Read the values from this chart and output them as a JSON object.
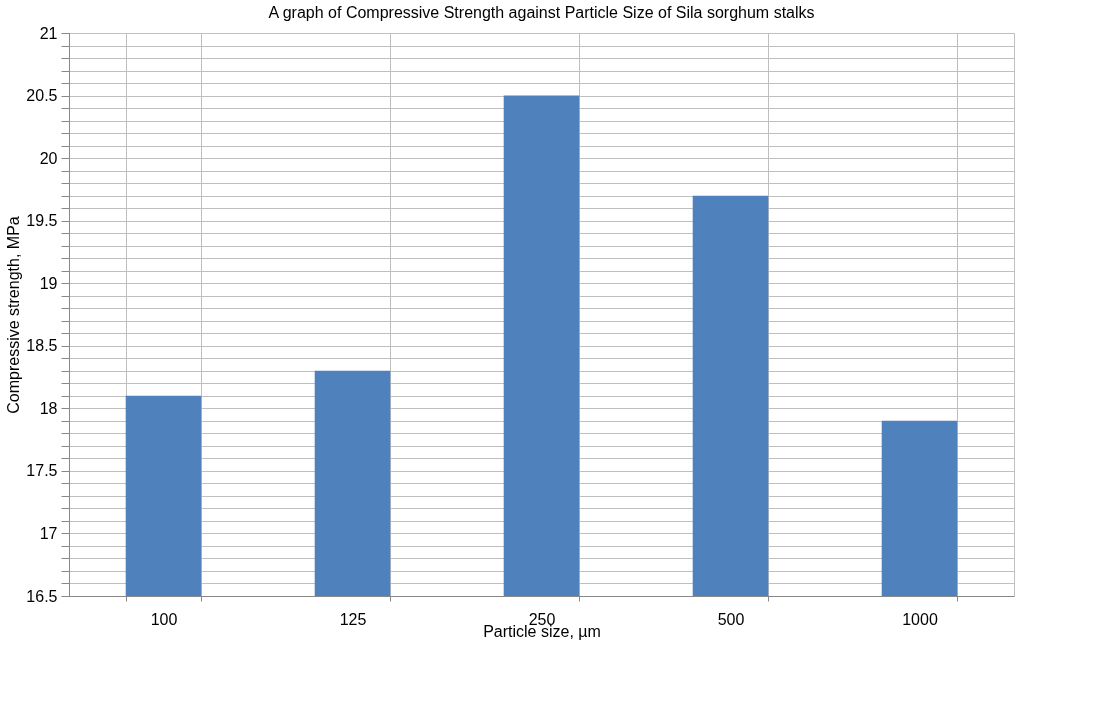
{
  "chart_data": {
    "type": "bar",
    "title": "A graph of Compressive Strength against Particle Size of Sila sorghum stalks",
    "xlabel": "Particle size, µm",
    "ylabel": "Compressive strength, MPa",
    "categories": [
      "100",
      "125",
      "250",
      "500",
      "1000"
    ],
    "values": [
      18.1,
      18.3,
      20.5,
      19.7,
      17.9
    ],
    "color": "#4f81bd",
    "ylim": [
      16.5,
      21
    ],
    "yticks": [
      16.5,
      {
        "value": 16.6,
        "label": null
      },
      {
        "value": 16.7,
        "label": null
      },
      {
        "value": 16.8,
        "label": null
      },
      {
        "value": 16.9,
        "label": null
      },
      17,
      {
        "value": 17.1,
        "label": null
      },
      {
        "value": 17.2,
        "label": null
      },
      {
        "value": 17.3,
        "label": null
      },
      {
        "value": 17.4,
        "label": null
      },
      17.5,
      {
        "value": 17.6,
        "label": null
      },
      {
        "value": 17.7,
        "label": null
      },
      {
        "value": 17.8,
        "label": null
      },
      {
        "value": 17.9,
        "label": null
      },
      18,
      {
        "value": 18.1,
        "label": null
      },
      {
        "value": 18.2,
        "label": null
      },
      {
        "value": 18.3,
        "label": null
      },
      {
        "value": 18.4,
        "label": null
      },
      18.5,
      {
        "value": 18.6,
        "label": null
      },
      {
        "value": 18.7,
        "label": null
      },
      {
        "value": 18.8,
        "label": null
      },
      {
        "value": 18.9,
        "label": null
      },
      19,
      {
        "value": 19.1,
        "label": null
      },
      {
        "value": 19.2,
        "label": null
      },
      {
        "value": 19.3,
        "label": null
      },
      {
        "value": 19.4,
        "label": null
      },
      19.5,
      {
        "value": 19.6,
        "label": null
      },
      {
        "value": 19.7,
        "label": null
      },
      {
        "value": 19.8,
        "label": null
      },
      {
        "value": 19.9,
        "label": null
      },
      20,
      {
        "value": 20.1,
        "label": null
      },
      {
        "value": 20.2,
        "label": null
      },
      {
        "value": 20.3,
        "label": null
      },
      {
        "value": 20.4,
        "label": null
      },
      20.5,
      {
        "value": 20.6,
        "label": null
      },
      {
        "value": 20.7,
        "label": null
      },
      {
        "value": 20.8,
        "label": null
      },
      {
        "value": 20.9,
        "label": null
      },
      21
    ],
    "grid": true
  }
}
